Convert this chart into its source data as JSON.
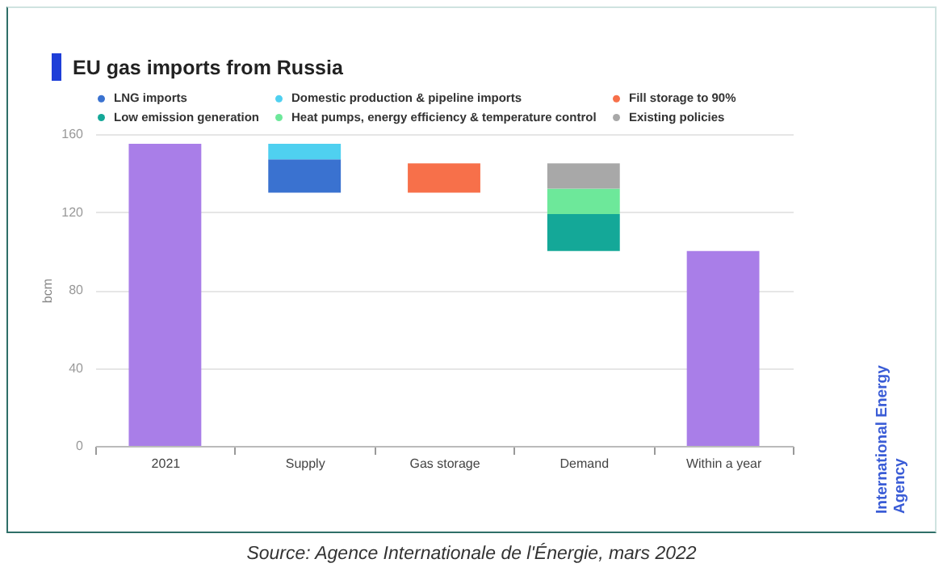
{
  "chart_data": {
    "type": "bar",
    "title": "EU gas imports from Russia",
    "ylabel": "bcm",
    "categories": [
      "2021",
      "Supply",
      "Gas storage",
      "Demand",
      "Within a year"
    ],
    "series": [
      {
        "color": "#a97ee8",
        "values": [
          155,
          null,
          null,
          null,
          100
        ],
        "base": [
          0,
          null,
          null,
          null,
          0
        ]
      },
      {
        "name": "LNG imports",
        "color": "#3a72d0",
        "values": [
          null,
          17,
          null,
          null,
          null
        ],
        "base": [
          null,
          130,
          null,
          null,
          null
        ]
      },
      {
        "name": "Domestic production & pipeline imports",
        "color": "#4fd0f0",
        "values": [
          null,
          8,
          null,
          null,
          null
        ],
        "base": [
          null,
          147,
          null,
          null,
          null
        ]
      },
      {
        "name": "Fill storage to 90%",
        "color": "#f7704a",
        "values": [
          null,
          null,
          15,
          null,
          null
        ],
        "base": [
          null,
          null,
          130,
          null,
          null
        ]
      },
      {
        "name": "Low emission generation",
        "color": "#14a898",
        "values": [
          null,
          null,
          null,
          19,
          null
        ],
        "base": [
          null,
          null,
          null,
          100,
          null
        ]
      },
      {
        "name": "Heat pumps, energy efficiency & temperature control",
        "color": "#6de89a",
        "values": [
          null,
          null,
          null,
          13,
          null
        ],
        "base": [
          null,
          null,
          null,
          119,
          null
        ]
      },
      {
        "name": "Existing policies",
        "color": "#a8a8a8",
        "values": [
          null,
          null,
          null,
          13,
          null
        ],
        "base": [
          null,
          null,
          null,
          132,
          null
        ]
      }
    ],
    "ylim": [
      0,
      160
    ],
    "yticks": [
      0,
      40,
      80,
      120,
      160
    ],
    "grid": "y",
    "legend": "top",
    "annotations": [
      "International Energy Agency",
      "Source: Agence Internationale de l'Énergie, mars 2022"
    ]
  }
}
